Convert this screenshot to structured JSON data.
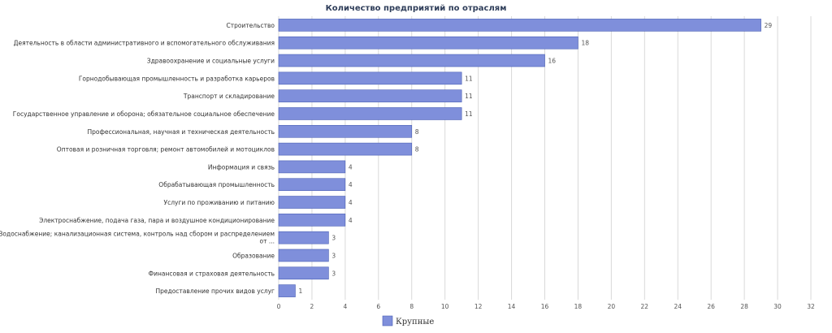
{
  "chart_data": {
    "type": "bar",
    "orientation": "horizontal",
    "title": "Количество предприятий по отраслям",
    "categories": [
      "Строительство",
      "Деятельность в области административного и вспомогательного обслуживания",
      "Здравоохранение и социальные услуги",
      "Горнодобывающая промышленность и разработка карьеров",
      "Транспорт и складирование",
      "Государственное управление и оборона; обязательное социальное обеспечение",
      "Профессиональная, научная и техническая деятельность",
      "Оптовая и розничная торговля; ремонт автомобилей и мотоциклов",
      "Информация и связь",
      "Обрабатывающая промышленность",
      "Услуги по проживанию и питанию",
      "Электроснабжение, подача газа, пара и воздушное кондиционирование",
      "Водоснабжение; канализационная система, контроль над сбором и распределением от ...",
      "Образование",
      "Финансовая и страховая деятельность",
      "Предоставление прочих видов услуг"
    ],
    "series": [
      {
        "name": "Крупные",
        "values": [
          29,
          18,
          16,
          11,
          11,
          11,
          8,
          8,
          4,
          4,
          4,
          4,
          3,
          3,
          3,
          1
        ],
        "color": "#7f8fdb"
      }
    ],
    "xticks": [
      0,
      2,
      4,
      6,
      8,
      10,
      12,
      14,
      16,
      18,
      20,
      22,
      24,
      26,
      28,
      30,
      32
    ],
    "xlim": [
      0,
      32
    ],
    "grid": true,
    "legend_position": "bottom-center"
  }
}
